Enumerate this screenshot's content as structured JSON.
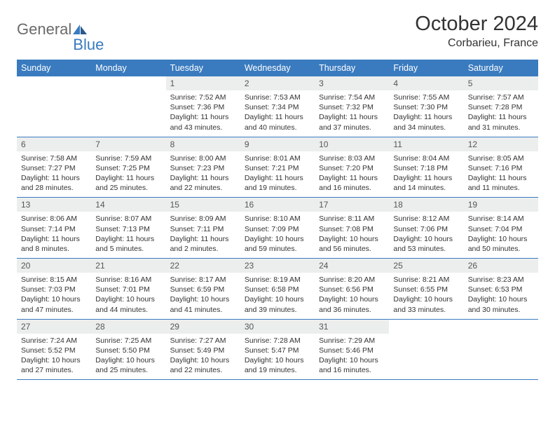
{
  "logo": {
    "text1": "General",
    "text2": "Blue"
  },
  "title": "October 2024",
  "location": "Corbarieu, France",
  "colors": {
    "header_bg": "#3a7bbf",
    "header_text": "#ffffff",
    "daynum_bg": "#eceeee",
    "border": "#3a7bbf",
    "logo_gray": "#6a6a6a",
    "logo_blue": "#3a7bbf"
  },
  "weekdays": [
    "Sunday",
    "Monday",
    "Tuesday",
    "Wednesday",
    "Thursday",
    "Friday",
    "Saturday"
  ],
  "weeks": [
    [
      null,
      null,
      {
        "n": "1",
        "sr": "7:52 AM",
        "ss": "7:36 PM",
        "dl": "11 hours and 43 minutes."
      },
      {
        "n": "2",
        "sr": "7:53 AM",
        "ss": "7:34 PM",
        "dl": "11 hours and 40 minutes."
      },
      {
        "n": "3",
        "sr": "7:54 AM",
        "ss": "7:32 PM",
        "dl": "11 hours and 37 minutes."
      },
      {
        "n": "4",
        "sr": "7:55 AM",
        "ss": "7:30 PM",
        "dl": "11 hours and 34 minutes."
      },
      {
        "n": "5",
        "sr": "7:57 AM",
        "ss": "7:28 PM",
        "dl": "11 hours and 31 minutes."
      }
    ],
    [
      {
        "n": "6",
        "sr": "7:58 AM",
        "ss": "7:27 PM",
        "dl": "11 hours and 28 minutes."
      },
      {
        "n": "7",
        "sr": "7:59 AM",
        "ss": "7:25 PM",
        "dl": "11 hours and 25 minutes."
      },
      {
        "n": "8",
        "sr": "8:00 AM",
        "ss": "7:23 PM",
        "dl": "11 hours and 22 minutes."
      },
      {
        "n": "9",
        "sr": "8:01 AM",
        "ss": "7:21 PM",
        "dl": "11 hours and 19 minutes."
      },
      {
        "n": "10",
        "sr": "8:03 AM",
        "ss": "7:20 PM",
        "dl": "11 hours and 16 minutes."
      },
      {
        "n": "11",
        "sr": "8:04 AM",
        "ss": "7:18 PM",
        "dl": "11 hours and 14 minutes."
      },
      {
        "n": "12",
        "sr": "8:05 AM",
        "ss": "7:16 PM",
        "dl": "11 hours and 11 minutes."
      }
    ],
    [
      {
        "n": "13",
        "sr": "8:06 AM",
        "ss": "7:14 PM",
        "dl": "11 hours and 8 minutes."
      },
      {
        "n": "14",
        "sr": "8:07 AM",
        "ss": "7:13 PM",
        "dl": "11 hours and 5 minutes."
      },
      {
        "n": "15",
        "sr": "8:09 AM",
        "ss": "7:11 PM",
        "dl": "11 hours and 2 minutes."
      },
      {
        "n": "16",
        "sr": "8:10 AM",
        "ss": "7:09 PM",
        "dl": "10 hours and 59 minutes."
      },
      {
        "n": "17",
        "sr": "8:11 AM",
        "ss": "7:08 PM",
        "dl": "10 hours and 56 minutes."
      },
      {
        "n": "18",
        "sr": "8:12 AM",
        "ss": "7:06 PM",
        "dl": "10 hours and 53 minutes."
      },
      {
        "n": "19",
        "sr": "8:14 AM",
        "ss": "7:04 PM",
        "dl": "10 hours and 50 minutes."
      }
    ],
    [
      {
        "n": "20",
        "sr": "8:15 AM",
        "ss": "7:03 PM",
        "dl": "10 hours and 47 minutes."
      },
      {
        "n": "21",
        "sr": "8:16 AM",
        "ss": "7:01 PM",
        "dl": "10 hours and 44 minutes."
      },
      {
        "n": "22",
        "sr": "8:17 AM",
        "ss": "6:59 PM",
        "dl": "10 hours and 41 minutes."
      },
      {
        "n": "23",
        "sr": "8:19 AM",
        "ss": "6:58 PM",
        "dl": "10 hours and 39 minutes."
      },
      {
        "n": "24",
        "sr": "8:20 AM",
        "ss": "6:56 PM",
        "dl": "10 hours and 36 minutes."
      },
      {
        "n": "25",
        "sr": "8:21 AM",
        "ss": "6:55 PM",
        "dl": "10 hours and 33 minutes."
      },
      {
        "n": "26",
        "sr": "8:23 AM",
        "ss": "6:53 PM",
        "dl": "10 hours and 30 minutes."
      }
    ],
    [
      {
        "n": "27",
        "sr": "7:24 AM",
        "ss": "5:52 PM",
        "dl": "10 hours and 27 minutes."
      },
      {
        "n": "28",
        "sr": "7:25 AM",
        "ss": "5:50 PM",
        "dl": "10 hours and 25 minutes."
      },
      {
        "n": "29",
        "sr": "7:27 AM",
        "ss": "5:49 PM",
        "dl": "10 hours and 22 minutes."
      },
      {
        "n": "30",
        "sr": "7:28 AM",
        "ss": "5:47 PM",
        "dl": "10 hours and 19 minutes."
      },
      {
        "n": "31",
        "sr": "7:29 AM",
        "ss": "5:46 PM",
        "dl": "10 hours and 16 minutes."
      },
      null,
      null
    ]
  ],
  "labels": {
    "sunrise": "Sunrise:",
    "sunset": "Sunset:",
    "daylight": "Daylight:"
  }
}
